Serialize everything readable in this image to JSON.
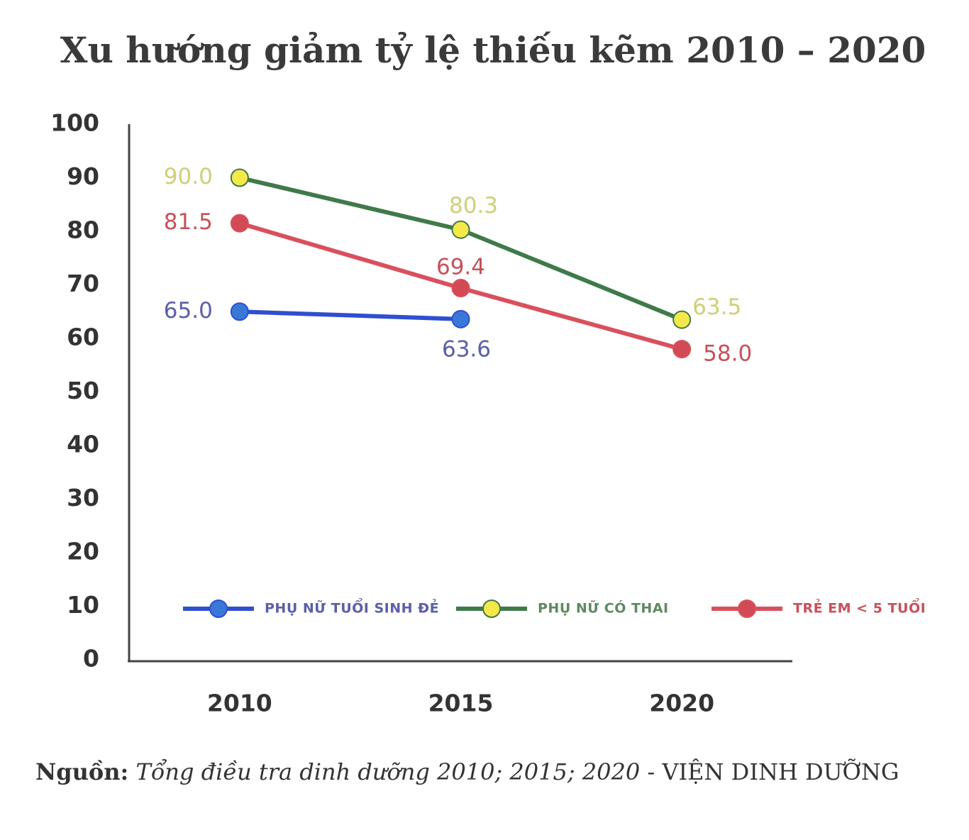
{
  "chart_data": {
    "type": "line",
    "title": "Xu hướng giảm tỷ lệ thiếu kẽm 2010 – 2020",
    "categories": [
      "2010",
      "2015",
      "2020"
    ],
    "ylim": [
      0,
      100
    ],
    "yticks": [
      0,
      10,
      20,
      30,
      40,
      50,
      60,
      70,
      80,
      90,
      100
    ],
    "grid": false,
    "legend": "bottom",
    "series": [
      {
        "name": "PHỤ NỮ TUỔI SINH ĐẺ",
        "color": "#2f4fd0",
        "marker_color": "#3a78d8",
        "label_color": "#5a5fa8",
        "legend_text_color": "#5a5fa8",
        "values": [
          65.0,
          63.6,
          null
        ],
        "value_labels": [
          "65.0",
          "63.6",
          null
        ]
      },
      {
        "name": "PHỤ NỮ CÓ THAI",
        "color": "#3f7a4a",
        "marker_color": "#f5e94a",
        "label_color": "#cfcf78",
        "legend_text_color": "#5d8a60",
        "values": [
          90.0,
          80.3,
          63.5
        ],
        "value_labels": [
          "90.0",
          "80.3",
          "63.5"
        ]
      },
      {
        "name": "TRẺ EM < 5 TUỔI",
        "color": "#d9505c",
        "marker_color": "#d24a55",
        "label_color": "#c8505a",
        "legend_text_color": "#c8505a",
        "values": [
          81.5,
          69.4,
          58.0
        ],
        "value_labels": [
          "81.5",
          "69.4",
          "58.0"
        ]
      }
    ]
  },
  "source": {
    "label": "Nguồn:",
    "text": "Tổng điều tra dinh dưỡng 2010; 2015; 2020",
    "org": "- VIỆN DINH DƯỠNG"
  }
}
